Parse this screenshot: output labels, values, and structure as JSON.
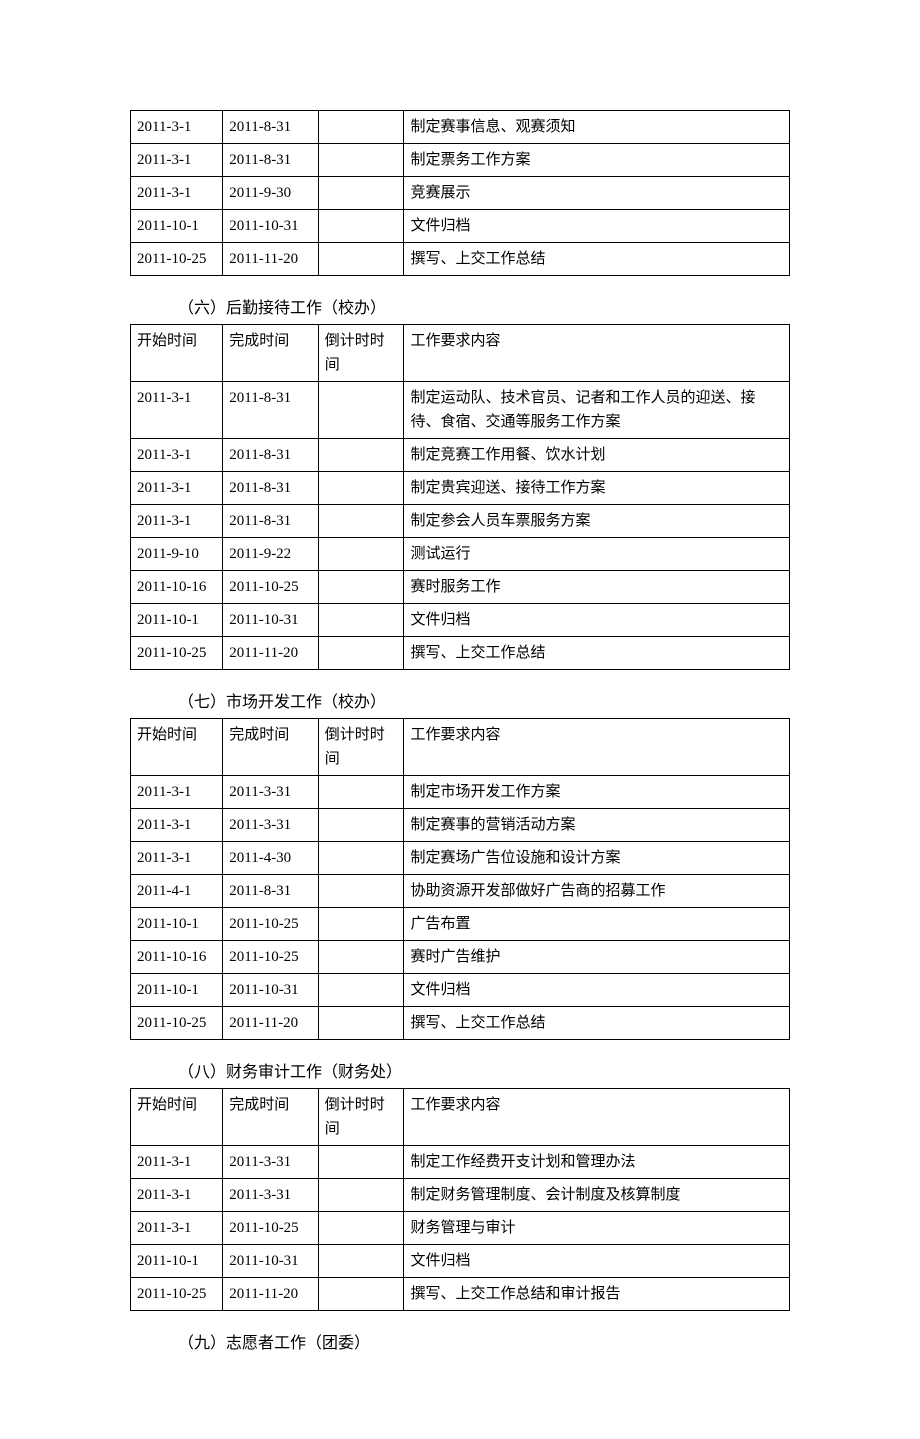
{
  "table_first": {
    "rows": [
      [
        "2011-3-1",
        "2011-8-31",
        "",
        "制定赛事信息、观赛须知"
      ],
      [
        "2011-3-1",
        "2011-8-31",
        "",
        "制定票务工作方案"
      ],
      [
        "2011-3-1",
        "2011-9-30",
        "",
        "竞赛展示"
      ],
      [
        "2011-10-1",
        "2011-10-31",
        "",
        "文件归档"
      ],
      [
        "2011-10-25",
        "2011-11-20",
        "",
        "撰写、上交工作总结"
      ]
    ]
  },
  "section6": {
    "title": "（六）后勤接待工作（校办）",
    "headers": [
      "开始时间",
      "完成时间",
      "倒计时时间",
      "工作要求内容"
    ],
    "rows": [
      [
        "2011-3-1",
        "2011-8-31",
        "",
        "制定运动队、技术官员、记者和工作人员的迎送、接待、食宿、交通等服务工作方案"
      ],
      [
        "2011-3-1",
        "2011-8-31",
        "",
        "制定竞赛工作用餐、饮水计划"
      ],
      [
        "2011-3-1",
        "2011-8-31",
        "",
        "制定贵宾迎送、接待工作方案"
      ],
      [
        "2011-3-1",
        "2011-8-31",
        "",
        "制定参会人员车票服务方案"
      ],
      [
        "2011-9-10",
        "2011-9-22",
        "",
        "测试运行"
      ],
      [
        "2011-10-16",
        "2011-10-25",
        "",
        "赛时服务工作"
      ],
      [
        "2011-10-1",
        "2011-10-31",
        "",
        "文件归档"
      ],
      [
        "2011-10-25",
        "2011-11-20",
        "",
        "撰写、上交工作总结"
      ]
    ]
  },
  "section7": {
    "title": "（七）市场开发工作（校办）",
    "headers": [
      "开始时间",
      "完成时间",
      "倒计时时间",
      "工作要求内容"
    ],
    "rows": [
      [
        "2011-3-1",
        "2011-3-31",
        "",
        "制定市场开发工作方案"
      ],
      [
        "2011-3-1",
        "2011-3-31",
        "",
        "制定赛事的营销活动方案"
      ],
      [
        "2011-3-1",
        "2011-4-30",
        "",
        "制定赛场广告位设施和设计方案"
      ],
      [
        "2011-4-1",
        "2011-8-31",
        "",
        "协助资源开发部做好广告商的招募工作"
      ],
      [
        "2011-10-1",
        "2011-10-25",
        "",
        "广告布置"
      ],
      [
        "2011-10-16",
        "2011-10-25",
        "",
        "赛时广告维护"
      ],
      [
        "2011-10-1",
        "2011-10-31",
        "",
        "文件归档"
      ],
      [
        "2011-10-25",
        "2011-11-20",
        "",
        "撰写、上交工作总结"
      ]
    ]
  },
  "section8": {
    "title": "（八）财务审计工作（财务处）",
    "headers": [
      "开始时间",
      "完成时间",
      "倒计时时间",
      "工作要求内容"
    ],
    "rows": [
      [
        "2011-3-1",
        "2011-3-31",
        "",
        "制定工作经费开支计划和管理办法"
      ],
      [
        "2011-3-1",
        "2011-3-31",
        "",
        "制定财务管理制度、会计制度及核算制度"
      ],
      [
        "2011-3-1",
        "2011-10-25",
        "",
        "财务管理与审计"
      ],
      [
        "2011-10-1",
        "2011-10-31",
        "",
        "文件归档"
      ],
      [
        "2011-10-25",
        "2011-11-20",
        "",
        "撰写、上交工作总结和审计报告"
      ]
    ]
  },
  "section9": {
    "title": "（九）志愿者工作（团委）"
  }
}
